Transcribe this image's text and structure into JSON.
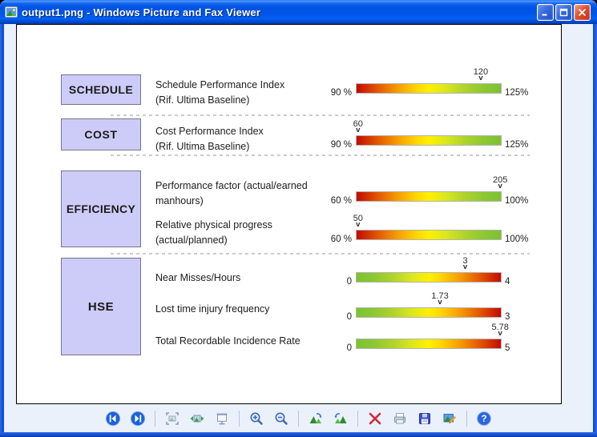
{
  "window": {
    "title": "output1.png - Windows Picture and Fax Viewer",
    "titlebar_icons": [
      "picture-file-icon",
      "minimize-icon",
      "maximize-icon",
      "close-icon"
    ]
  },
  "colors": {
    "titlebar_blue": "#0052e2",
    "frame_blue": "#0846cf",
    "gutter": "#ebf1fa",
    "category_box_fill": "#cdccf8",
    "category_box_border": "#767686",
    "gradient_red": "#c20b00",
    "gradient_yellow": "#fff000",
    "gradient_green": "#7cc230",
    "dashed_separator": "#cbcbcb"
  },
  "gauges": {
    "marker_glyph": "v",
    "sections": [
      {
        "category": "SCHEDULE",
        "rows": [
          {
            "label_line1": "Schedule Performance Index",
            "label_line2": "(Rif. Ultima Baseline)",
            "min": "90 %",
            "max": "125%",
            "value": "120",
            "marker_pct": 85.7,
            "gradient": "red-to-green"
          }
        ]
      },
      {
        "category": "COST",
        "rows": [
          {
            "label_line1": "Cost Performance Index",
            "label_line2": "(Rif. Ultima Baseline)",
            "min": "90 %",
            "max": "125%",
            "value": "60",
            "marker_pct": 1.5,
            "gradient": "red-to-green"
          }
        ]
      },
      {
        "category": "EFFICIENCY",
        "rows": [
          {
            "label_line1": "Performance factor (actual/earned",
            "label_line2": "manhours)",
            "min": "60 %",
            "max": "100%",
            "value": "205",
            "marker_pct": 99,
            "gradient": "red-to-green"
          },
          {
            "label_line1": "Relative physical progress",
            "label_line2": "(actual/planned)",
            "min": "60 %",
            "max": "100%",
            "value": "50",
            "marker_pct": 1.5,
            "gradient": "red-to-green"
          }
        ]
      },
      {
        "category": "HSE",
        "rows": [
          {
            "label_line1": "Near Misses/Hours",
            "label_line2": "",
            "min": "0",
            "max": "4",
            "value": "3",
            "marker_pct": 75,
            "gradient": "green-to-red"
          },
          {
            "label_line1": "Lost time injury frequency",
            "label_line2": "",
            "min": "0",
            "max": "3",
            "value": "1.73",
            "marker_pct": 57.7,
            "gradient": "green-to-red"
          },
          {
            "label_line1": "Total Recordable Incidence Rate",
            "label_line2": "",
            "min": "0",
            "max": "5",
            "value": "5.78",
            "marker_pct": 99,
            "gradient": "green-to-red"
          }
        ]
      }
    ]
  },
  "toolbar": {
    "icons": [
      "previous-image",
      "next-image",
      "best-fit",
      "actual-size",
      "start-slideshow",
      "zoom-in",
      "zoom-out",
      "rotate-clockwise",
      "rotate-counterclockwise",
      "delete",
      "print",
      "save",
      "edit-image",
      "help"
    ]
  }
}
